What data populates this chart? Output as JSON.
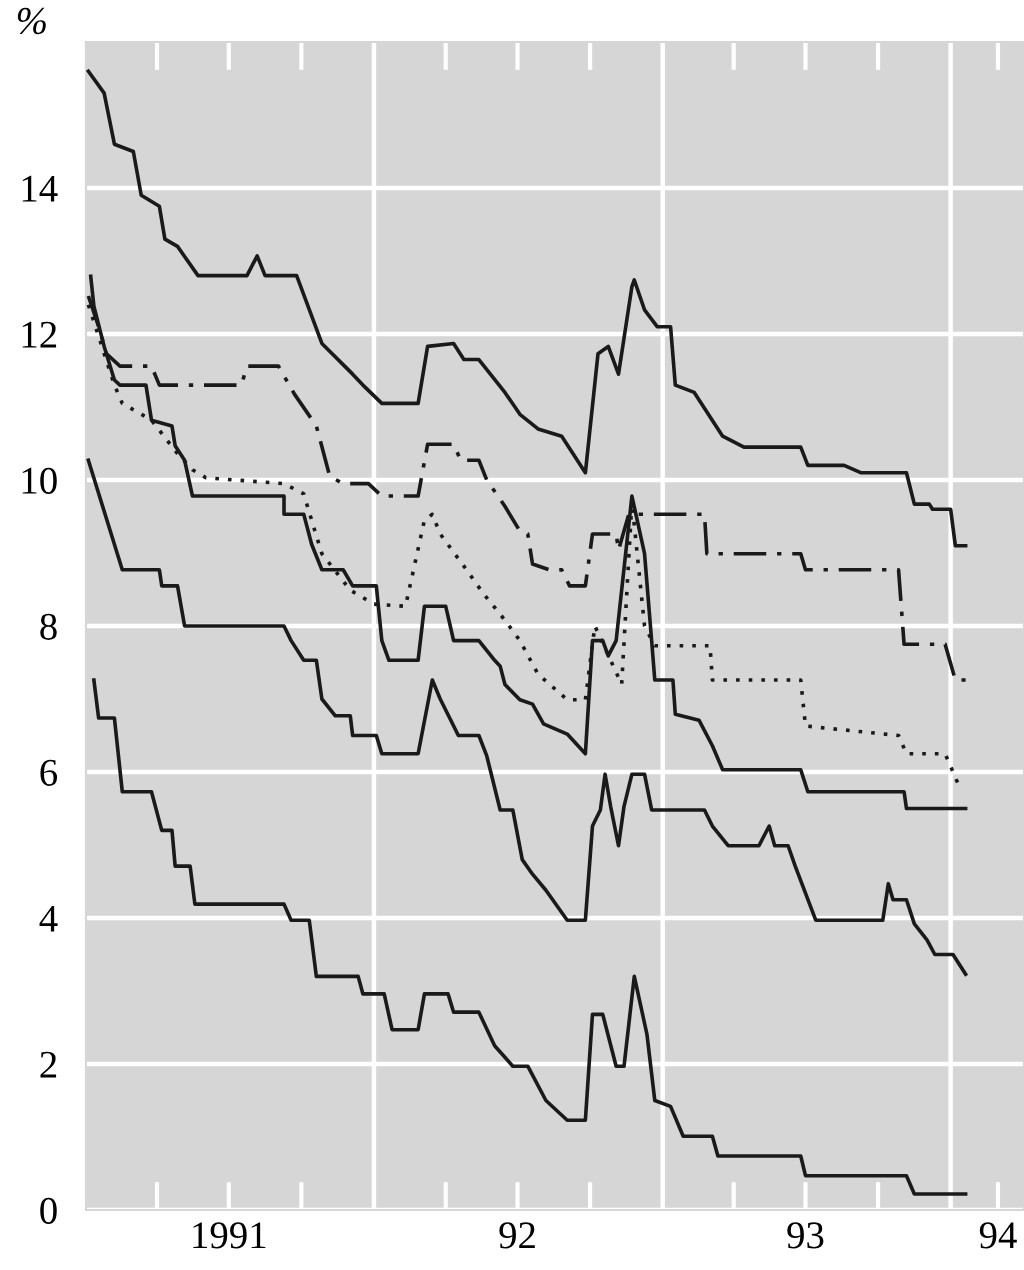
{
  "chart_data": {
    "type": "line",
    "ylabel": "%",
    "xlim": [
      "1991-01-01",
      "1994-04-04"
    ],
    "ylim": [
      0,
      16
    ],
    "yticks": [
      0,
      2,
      4,
      6,
      8,
      10,
      12,
      14
    ],
    "xticks": [
      {
        "value": "1991-04-01",
        "label": null
      },
      {
        "value": "1991-07-01",
        "label": "1991"
      },
      {
        "value": "1991-10-01",
        "label": null
      },
      {
        "value": "1992-04-01",
        "label": null
      },
      {
        "value": "1992-07-01",
        "label": "92"
      },
      {
        "value": "1992-10-01",
        "label": null
      },
      {
        "value": "1993-04-01",
        "label": null
      },
      {
        "value": "1993-07-01",
        "label": "93"
      },
      {
        "value": "1993-10-01",
        "label": null
      },
      {
        "value": "1994-03-02",
        "label": "94"
      }
    ],
    "grid": "y",
    "ref_lines": [
      {
        "axis": "x",
        "value": "1992-01-01",
        "color": "#ffffff"
      },
      {
        "axis": "x",
        "value": "1993-01-01",
        "color": "#ffffff"
      },
      {
        "axis": "x",
        "value": "1994-01-01",
        "color": "#ffffff"
      }
    ],
    "series": [
      {
        "color": "#1a1a1a",
        "line_style": "solid",
        "x": [
          "1991-01-04",
          "1991-01-24",
          "1991-02-06",
          "1991-03-02",
          "1991-03-12",
          "1991-04-04",
          "1991-04-11",
          "1991-04-27",
          "1991-05-23",
          "1991-07-24",
          "1991-08-06",
          "1991-08-16",
          "1991-09-25",
          "1991-10-27",
          "1991-12-05",
          "1991-12-18",
          "1992-01-11",
          "1992-02-26",
          "1992-03-09",
          "1992-04-11",
          "1992-04-24",
          "1992-05-13",
          "1992-06-15",
          "1992-07-04",
          "1992-07-27",
          "1992-08-26",
          "1992-09-25",
          "1992-10-11",
          "1992-10-24",
          "1992-11-06",
          "1992-11-23",
          "1992-11-26",
          "1992-12-09",
          "1992-12-25",
          "1993-01-11",
          "1993-01-17",
          "1993-02-10",
          "1993-03-18",
          "1993-04-14",
          "1993-06-25",
          "1993-07-04",
          "1993-08-19",
          "1993-09-09",
          "1993-11-06",
          "1993-11-16",
          "1993-12-05",
          "1993-12-09",
          "1994-01-01",
          "1994-01-07",
          "1994-01-20"
        ],
        "values": [
          15.6,
          15.3,
          14.6,
          14.5,
          13.9,
          13.75,
          13.3,
          13.2,
          12.8,
          12.8,
          13.07,
          12.8,
          12.8,
          11.87,
          11.45,
          11.3,
          11.05,
          11.05,
          11.83,
          11.87,
          11.65,
          11.65,
          11.2,
          10.9,
          10.7,
          10.6,
          10.1,
          11.73,
          11.83,
          11.45,
          12.65,
          12.74,
          12.33,
          12.1,
          12.1,
          11.3,
          11.2,
          10.6,
          10.45,
          10.45,
          10.2,
          10.2,
          10.1,
          10.1,
          9.67,
          9.67,
          9.6,
          9.6,
          9.1,
          9.1
        ]
      },
      {
        "color": "#1a1a1a",
        "line_style": "dashdot",
        "x": [
          "1991-01-04",
          "1991-01-17",
          "1991-01-27",
          "1991-02-13",
          "1991-03-25",
          "1991-04-04",
          "1991-07-17",
          "1991-07-24",
          "1991-09-02",
          "1991-09-22",
          "1991-10-20",
          "1991-11-06",
          "1991-11-23",
          "1991-12-25",
          "1992-01-11",
          "1992-02-26",
          "1992-03-09",
          "1992-04-11",
          "1992-04-20",
          "1992-05-13",
          "1992-05-23",
          "1992-06-15",
          "1992-07-04",
          "1992-07-14",
          "1992-07-20",
          "1992-08-10",
          "1992-08-26",
          "1992-09-05",
          "1992-09-25",
          "1992-10-04",
          "1992-11-03",
          "1992-11-06",
          "1992-11-19",
          "1993-02-23",
          "1993-02-26",
          "1993-06-25",
          "1993-07-01",
          "1993-10-27",
          "1993-11-03",
          "1993-12-25",
          "1994-01-07",
          "1994-01-20"
        ],
        "values": [
          12.52,
          12.1,
          11.73,
          11.56,
          11.56,
          11.3,
          11.3,
          11.56,
          11.56,
          11.18,
          10.74,
          10.05,
          9.95,
          9.95,
          9.78,
          9.78,
          10.49,
          10.49,
          10.27,
          10.27,
          10.0,
          9.64,
          9.3,
          9.26,
          8.85,
          8.77,
          8.77,
          8.55,
          8.55,
          9.26,
          9.26,
          9.04,
          9.53,
          9.53,
          8.99,
          8.99,
          8.77,
          8.77,
          7.75,
          7.75,
          7.26,
          7.26
        ]
      },
      {
        "color": "#1a1a1a",
        "line_style": "dotted",
        "x": [
          "1991-01-04",
          "1991-02-06",
          "1991-02-16",
          "1991-03-25",
          "1991-04-27",
          "1991-05-16",
          "1991-06-02",
          "1991-09-09",
          "1991-10-04",
          "1991-10-14",
          "1991-10-27",
          "1991-12-02",
          "1992-01-01",
          "1992-02-10",
          "1992-03-05",
          "1992-03-15",
          "1992-03-25",
          "1992-04-24",
          "1992-05-19",
          "1992-06-15",
          "1992-07-04",
          "1992-07-27",
          "1992-09-02",
          "1992-09-25",
          "1992-10-07",
          "1992-10-24",
          "1992-11-10",
          "1992-11-23",
          "1992-12-09",
          "1992-12-22",
          "1993-03-02",
          "1993-03-05",
          "1993-06-25",
          "1993-07-01",
          "1993-10-27",
          "1993-11-06",
          "1993-12-25",
          "1994-01-14"
        ],
        "values": [
          12.4,
          11.3,
          11.05,
          10.82,
          10.36,
          10.14,
          10.03,
          9.95,
          9.81,
          9.45,
          8.99,
          8.49,
          8.3,
          8.27,
          9.45,
          9.53,
          9.26,
          8.82,
          8.44,
          8.08,
          7.8,
          7.34,
          6.99,
          6.99,
          8.0,
          7.6,
          7.2,
          9.7,
          8.0,
          7.73,
          7.73,
          7.26,
          7.26,
          6.63,
          6.5,
          6.25,
          6.25,
          5.75
        ]
      },
      {
        "color": "#1a1a1a",
        "line_style": "solid",
        "x": [
          "1991-01-07",
          "1991-01-11",
          "1991-01-24",
          "1991-02-06",
          "1991-02-13",
          "1991-03-18",
          "1991-03-25",
          "1991-04-20",
          "1991-04-24",
          "1991-05-06",
          "1991-05-16",
          "1991-09-09",
          "1991-09-09",
          "1991-10-04",
          "1991-10-14",
          "1991-10-27",
          "1991-11-23",
          "1991-12-05",
          "1992-01-04",
          "1992-01-11",
          "1992-01-20",
          "1992-02-26",
          "1992-03-05",
          "1992-04-01",
          "1992-04-11",
          "1992-05-13",
          "1992-06-02",
          "1992-06-09",
          "1992-06-15",
          "1992-07-04",
          "1992-07-20",
          "1992-08-03",
          "1992-09-02",
          "1992-09-25",
          "1992-10-04",
          "1992-10-17",
          "1992-10-24",
          "1992-11-03",
          "1992-11-23",
          "1992-12-09",
          "1992-12-18",
          "1992-12-22",
          "1993-01-14",
          "1993-01-17",
          "1993-02-16",
          "1993-03-05",
          "1993-03-18",
          "1993-06-25",
          "1993-07-04",
          "1993-11-03",
          "1993-11-06",
          "1994-01-20"
        ],
        "values": [
          12.79,
          12.38,
          11.83,
          11.37,
          11.3,
          11.3,
          10.82,
          10.74,
          10.47,
          10.27,
          9.78,
          9.78,
          9.53,
          9.53,
          9.12,
          8.77,
          8.77,
          8.55,
          8.55,
          7.8,
          7.53,
          7.53,
          8.27,
          8.27,
          7.8,
          7.8,
          7.53,
          7.45,
          7.2,
          6.99,
          6.93,
          6.66,
          6.52,
          6.25,
          7.8,
          7.8,
          7.59,
          7.8,
          9.78,
          8.99,
          7.8,
          7.26,
          7.26,
          6.79,
          6.71,
          6.36,
          6.03,
          6.03,
          5.73,
          5.73,
          5.5,
          5.5
        ]
      },
      {
        "color": "#1a1a1a",
        "line_style": "solid",
        "x": [
          "1991-01-04",
          "1991-02-16",
          "1991-04-04",
          "1991-04-07",
          "1991-04-27",
          "1991-05-06",
          "1991-09-09",
          "1991-09-18",
          "1991-10-04",
          "1991-10-20",
          "1991-10-27",
          "1991-11-13",
          "1991-12-02",
          "1991-12-05",
          "1992-01-04",
          "1992-01-11",
          "1992-02-26",
          "1992-03-15",
          "1992-03-25",
          "1992-04-17",
          "1992-05-13",
          "1992-05-23",
          "1992-06-09",
          "1992-06-25",
          "1992-07-07",
          "1992-07-20",
          "1992-08-06",
          "1992-09-02",
          "1992-09-25",
          "1992-10-04",
          "1992-10-14",
          "1992-10-20",
          "1992-10-27",
          "1992-11-06",
          "1992-11-13",
          "1992-11-23",
          "1992-12-09",
          "1992-12-18",
          "1993-02-23",
          "1993-03-05",
          "1993-03-25",
          "1993-05-03",
          "1993-05-16",
          "1993-05-23",
          "1993-06-09",
          "1993-06-18",
          "1993-07-14",
          "1993-10-07",
          "1993-10-14",
          "1993-10-20",
          "1993-11-06",
          "1993-11-16",
          "1993-12-02",
          "1993-12-12",
          "1994-01-04",
          "1994-01-20"
        ],
        "values": [
          10.27,
          8.77,
          8.77,
          8.55,
          8.55,
          8.0,
          8.0,
          7.8,
          7.53,
          7.53,
          7.0,
          6.77,
          6.77,
          6.5,
          6.5,
          6.25,
          6.25,
          7.26,
          7.0,
          6.5,
          6.5,
          6.22,
          5.48,
          5.48,
          4.8,
          4.6,
          4.38,
          3.97,
          3.97,
          5.26,
          5.48,
          5.97,
          5.53,
          4.99,
          5.53,
          5.97,
          5.97,
          5.48,
          5.48,
          5.26,
          4.99,
          4.99,
          5.26,
          4.99,
          4.99,
          4.71,
          3.97,
          3.97,
          4.47,
          4.25,
          4.25,
          3.92,
          3.7,
          3.5,
          3.5,
          3.23
        ]
      },
      {
        "color": "#1a1a1a",
        "line_style": "solid",
        "x": [
          "1991-01-11",
          "1991-01-17",
          "1991-02-06",
          "1991-02-16",
          "1991-03-25",
          "1991-04-07",
          "1991-04-20",
          "1991-04-24",
          "1991-05-13",
          "1991-05-19",
          "1991-09-09",
          "1991-09-18",
          "1991-10-11",
          "1991-10-20",
          "1991-12-12",
          "1991-12-18",
          "1992-01-14",
          "1992-01-24",
          "1992-02-26",
          "1992-03-05",
          "1992-04-04",
          "1992-04-11",
          "1992-05-13",
          "1992-06-02",
          "1992-06-25",
          "1992-07-14",
          "1992-08-06",
          "1992-09-02",
          "1992-09-25",
          "1992-10-04",
          "1992-10-17",
          "1992-11-03",
          "1992-11-13",
          "1992-11-26",
          "1992-12-12",
          "1992-12-22",
          "1993-01-11",
          "1993-01-27",
          "1993-03-05",
          "1993-03-12",
          "1993-06-25",
          "1993-07-01",
          "1993-11-06",
          "1993-11-16",
          "1994-01-20"
        ],
        "values": [
          7.26,
          6.74,
          6.74,
          5.73,
          5.73,
          5.2,
          5.2,
          4.71,
          4.71,
          4.19,
          4.19,
          3.97,
          3.97,
          3.2,
          3.2,
          2.96,
          2.96,
          2.47,
          2.47,
          2.96,
          2.96,
          2.71,
          2.71,
          2.25,
          1.97,
          1.97,
          1.5,
          1.23,
          1.23,
          2.68,
          2.68,
          1.97,
          1.97,
          3.2,
          2.41,
          1.5,
          1.42,
          1.01,
          1.01,
          0.74,
          0.74,
          0.47,
          0.47,
          0.22,
          0.22
        ]
      }
    ]
  }
}
